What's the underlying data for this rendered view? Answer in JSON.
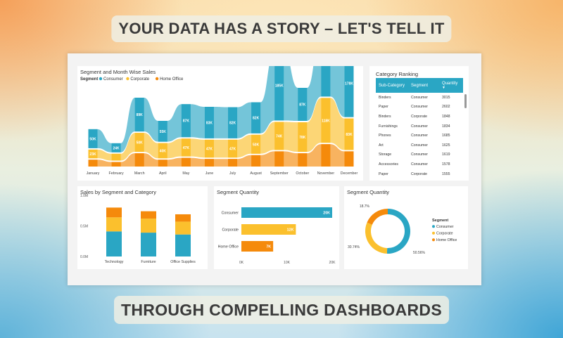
{
  "banner": {
    "top": "YOUR DATA HAS A STORY – LET'S TELL IT",
    "bottom": "THROUGH COMPELLING DASHBOARDS"
  },
  "colors": {
    "consumer": "#2aa6c4",
    "corporate": "#fbc02d",
    "home_office": "#f58a0b"
  },
  "segment_month": {
    "title": "Segment and Month Wise Sales",
    "legend_label": "Segment",
    "legend": [
      "Consumer",
      "Corporate",
      "Home Office"
    ]
  },
  "category_ranking": {
    "title": "Category Ranking",
    "columns": [
      "Sub-Category",
      "Segment",
      "Quantity"
    ],
    "rows": [
      [
        "Binders",
        "Consumer",
        "3015"
      ],
      [
        "Paper",
        "Consumer",
        "2602"
      ],
      [
        "Binders",
        "Corporate",
        "1848"
      ],
      [
        "Furnishings",
        "Consumer",
        "1834"
      ],
      [
        "Phones",
        "Consumer",
        "1685"
      ],
      [
        "Art",
        "Consumer",
        "1625"
      ],
      [
        "Storage",
        "Consumer",
        "1619"
      ],
      [
        "Accessories",
        "Consumer",
        "1578"
      ],
      [
        "Paper",
        "Corporate",
        "1555"
      ]
    ]
  },
  "sales_seg_cat": {
    "title": "Sales by Segment and Category"
  },
  "segment_quantity_bar": {
    "title": "Segment Quantity"
  },
  "segment_quantity_donut": {
    "title": "Segment Quantity",
    "legend_title": "Segment",
    "legend": [
      "Consumer",
      "Corporate",
      "Home Office"
    ]
  },
  "chart_data": [
    {
      "type": "area",
      "title": "Segment and Month Wise Sales",
      "categories": [
        "January",
        "February",
        "March",
        "April",
        "May",
        "June",
        "July",
        "August",
        "September",
        "October",
        "November",
        "December"
      ],
      "series": [
        {
          "name": "Consumer",
          "values": [
            50,
            24,
            89,
            55,
            87,
            83,
            82,
            82,
            185,
            87,
            171,
            178
          ],
          "labels": [
            "50K",
            "24K",
            "89K",
            "55K",
            "87K",
            "83K",
            "82K",
            "82K",
            "185K",
            "87K",
            "171K",
            "178K"
          ]
        },
        {
          "name": "Corporate",
          "values": [
            23,
            18,
            50,
            40,
            47,
            47,
            47,
            50,
            74,
            78,
            118,
            83
          ],
          "labels": [
            "23K",
            "",
            "50K",
            "40K",
            "47K",
            "47K",
            "47K",
            "50K",
            "74K",
            "78K",
            "118K",
            "83K"
          ]
        },
        {
          "name": "Home Office",
          "values": [
            18,
            12,
            35,
            18,
            23,
            20,
            20,
            30,
            40,
            35,
            59,
            40
          ],
          "labels": [
            "",
            "",
            "",
            "",
            "",
            "",
            "",
            "",
            "",
            "",
            "",
            ""
          ]
        }
      ]
    },
    {
      "type": "bar",
      "title": "Sales by Segment and Category",
      "categories": [
        "Technology",
        "Furniture",
        "Office Supplies"
      ],
      "series": [
        {
          "name": "Consumer",
          "values": [
            0.41,
            0.39,
            0.36
          ]
        },
        {
          "name": "Corporate",
          "values": [
            0.23,
            0.23,
            0.21
          ]
        },
        {
          "name": "Home Office",
          "values": [
            0.16,
            0.12,
            0.12
          ]
        }
      ],
      "yticks": [
        "1.0M",
        "0.5M",
        "0.0M"
      ],
      "ylim": [
        0,
        1.0
      ]
    },
    {
      "type": "bar",
      "orientation": "horizontal",
      "title": "Segment Quantity",
      "categories": [
        "Consumer",
        "Corporate",
        "Home Office"
      ],
      "values": [
        20000,
        12000,
        7000
      ],
      "labels": [
        "20K",
        "12K",
        "7K"
      ],
      "xticks": [
        "0K",
        "10K",
        "20K"
      ],
      "xlim": [
        0,
        20000
      ]
    },
    {
      "type": "pie",
      "donut": true,
      "title": "Segment Quantity",
      "categories": [
        "Consumer",
        "Corporate",
        "Home Office"
      ],
      "values": [
        50.56,
        30.74,
        18.7
      ],
      "labels": [
        "50.56%",
        "30.74%",
        "18.7%"
      ]
    }
  ]
}
